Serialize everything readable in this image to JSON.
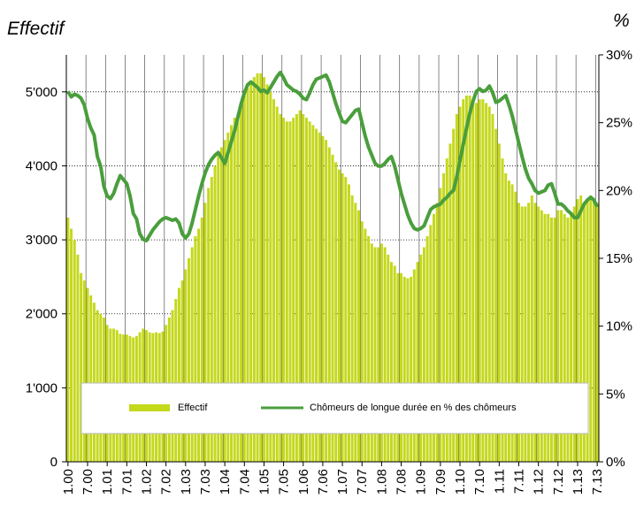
{
  "chart_data": {
    "type": "bar",
    "ylabel": "Effectif",
    "y2label": "%",
    "categories": [
      "1.00",
      null,
      null,
      null,
      null,
      null,
      "7.00",
      null,
      null,
      null,
      null,
      null,
      "1.01",
      null,
      null,
      null,
      null,
      null,
      "7.01",
      null,
      null,
      null,
      null,
      null,
      "1.02",
      null,
      null,
      null,
      null,
      null,
      "7.02",
      null,
      null,
      null,
      null,
      null,
      "1.03",
      null,
      null,
      null,
      null,
      null,
      "7.03",
      null,
      null,
      null,
      null,
      null,
      "1.04",
      null,
      null,
      null,
      null,
      null,
      "7.04",
      null,
      null,
      null,
      null,
      null,
      "1.05",
      null,
      null,
      null,
      null,
      null,
      "7.05",
      null,
      null,
      null,
      null,
      null,
      "1.06",
      null,
      null,
      null,
      null,
      null,
      "7.06",
      null,
      null,
      null,
      null,
      null,
      "1.07",
      null,
      null,
      null,
      null,
      null,
      "7.07",
      null,
      null,
      null,
      null,
      null,
      "1.08",
      null,
      null,
      null,
      null,
      null,
      "7.08",
      null,
      null,
      null,
      null,
      null,
      "1.09",
      null,
      null,
      null,
      null,
      null,
      "7.09",
      null,
      null,
      null,
      null,
      null,
      "1.10",
      null,
      null,
      null,
      null,
      null,
      "7.10",
      null,
      null,
      null,
      null,
      null,
      "1.11",
      null,
      null,
      null,
      null,
      null,
      "7.11",
      null,
      null,
      null,
      null,
      null,
      "1.12",
      null,
      null,
      null,
      null,
      null,
      "7.12",
      null,
      null,
      null,
      null,
      null,
      "1.13",
      null,
      null,
      null,
      null,
      null,
      "7.13"
    ],
    "series": [
      {
        "name": "Effectif",
        "type": "bar",
        "color": "#c4d81c",
        "values": [
          3300,
          3150,
          3000,
          2800,
          2550,
          2450,
          2350,
          2250,
          2150,
          2050,
          2000,
          1950,
          1850,
          1800,
          1800,
          1780,
          1730,
          1720,
          1720,
          1700,
          1680,
          1700,
          1750,
          1800,
          1780,
          1750,
          1740,
          1750,
          1740,
          1760,
          1850,
          1950,
          2050,
          2200,
          2350,
          2450,
          2600,
          2750,
          2900,
          3050,
          3150,
          3300,
          3500,
          3700,
          3850,
          4000,
          4150,
          4250,
          4350,
          4450,
          4550,
          4650,
          4700,
          4800,
          4950,
          5050,
          5150,
          5200,
          5250,
          5250,
          5200,
          5100,
          5000,
          4900,
          4800,
          4700,
          4650,
          4600,
          4600,
          4650,
          4700,
          4750,
          4700,
          4650,
          4600,
          4550,
          4500,
          4450,
          4400,
          4350,
          4250,
          4150,
          4050,
          3950,
          3900,
          3850,
          3750,
          3600,
          3500,
          3400,
          3250,
          3150,
          3050,
          2950,
          2900,
          2900,
          2950,
          2900,
          2800,
          2700,
          2650,
          2550,
          2550,
          2500,
          2480,
          2500,
          2600,
          2700,
          2800,
          2900,
          3050,
          3200,
          3350,
          3500,
          3700,
          3900,
          4100,
          4300,
          4500,
          4700,
          4800,
          4900,
          4950,
          4950,
          4900,
          4850,
          4900,
          4900,
          4850,
          4800,
          4700,
          4500,
          4300,
          4100,
          3900,
          3800,
          3750,
          3650,
          3500,
          3450,
          3450,
          3500,
          3600,
          3500,
          3450,
          3400,
          3350,
          3350,
          3300,
          3300,
          3400,
          3400,
          3350,
          3300,
          3350,
          3450,
          3550,
          3600,
          3500,
          3550,
          3600,
          3550,
          3500
        ]
      },
      {
        "name": "Chômeurs de longue durée en % des chômeurs",
        "type": "line",
        "axis": "y2",
        "color": "#4a9e3c",
        "values": [
          27.3,
          26.9,
          27.1,
          27.0,
          26.8,
          26.3,
          25.3,
          24.6,
          24.1,
          22.5,
          21.8,
          20.3,
          19.6,
          19.4,
          19.8,
          20.5,
          21.1,
          20.8,
          20.5,
          19.6,
          18.3,
          17.9,
          16.8,
          16.4,
          16.3,
          16.7,
          17.1,
          17.4,
          17.7,
          17.9,
          18.0,
          17.9,
          17.8,
          17.9,
          17.6,
          16.8,
          16.5,
          16.8,
          17.6,
          18.6,
          19.6,
          20.5,
          21.3,
          21.9,
          22.3,
          22.6,
          22.8,
          22.4,
          22.0,
          22.8,
          23.6,
          24.4,
          25.4,
          26.4,
          27.2,
          27.8,
          28.0,
          27.8,
          27.6,
          27.3,
          27.4,
          27.2,
          27.6,
          28.0,
          28.4,
          28.7,
          28.3,
          27.8,
          27.6,
          27.4,
          27.3,
          27.1,
          26.8,
          26.7,
          27.2,
          27.8,
          28.2,
          28.3,
          28.4,
          28.5,
          28.0,
          27.2,
          26.4,
          25.7,
          25.1,
          25.0,
          25.3,
          25.6,
          25.9,
          26.0,
          25.0,
          24.0,
          23.2,
          22.6,
          22.0,
          21.8,
          21.8,
          22.0,
          22.3,
          22.5,
          21.8,
          20.8,
          19.8,
          19.0,
          18.2,
          17.6,
          17.2,
          17.1,
          17.2,
          17.4,
          18.0,
          18.6,
          18.8,
          18.9,
          19.0,
          19.3,
          19.5,
          19.8,
          20.0,
          21.0,
          22.2,
          23.4,
          24.6,
          25.7,
          26.6,
          27.3,
          27.5,
          27.3,
          27.4,
          27.7,
          27.2,
          26.5,
          26.6,
          26.8,
          27.0,
          26.3,
          25.5,
          24.5,
          23.5,
          22.5,
          21.6,
          20.9,
          20.5,
          20.0,
          19.8,
          19.9,
          20.0,
          20.4,
          20.5,
          19.8,
          19.0,
          19.0,
          18.8,
          18.5,
          18.3,
          18.0,
          18.0,
          18.5,
          19.0,
          19.3,
          19.5,
          19.3,
          18.8
        ]
      }
    ],
    "ylim": [
      0,
      5500
    ],
    "yticks": [
      {
        "value": 0,
        "label": "0"
      },
      {
        "value": 1000,
        "label": "1'000"
      },
      {
        "value": 2000,
        "label": "2'000"
      },
      {
        "value": 3000,
        "label": "3'000"
      },
      {
        "value": 4000,
        "label": "4'000"
      },
      {
        "value": 5000,
        "label": "5'000"
      }
    ],
    "y2lim": [
      0,
      30
    ],
    "y2ticks": [
      {
        "value": 0,
        "label": "0%"
      },
      {
        "value": 5,
        "label": "5%"
      },
      {
        "value": 10,
        "label": "10%"
      },
      {
        "value": 15,
        "label": "15%"
      },
      {
        "value": 20,
        "label": "20%"
      },
      {
        "value": 25,
        "label": "25%"
      },
      {
        "value": 30,
        "label": "30%"
      }
    ],
    "grid": true
  }
}
